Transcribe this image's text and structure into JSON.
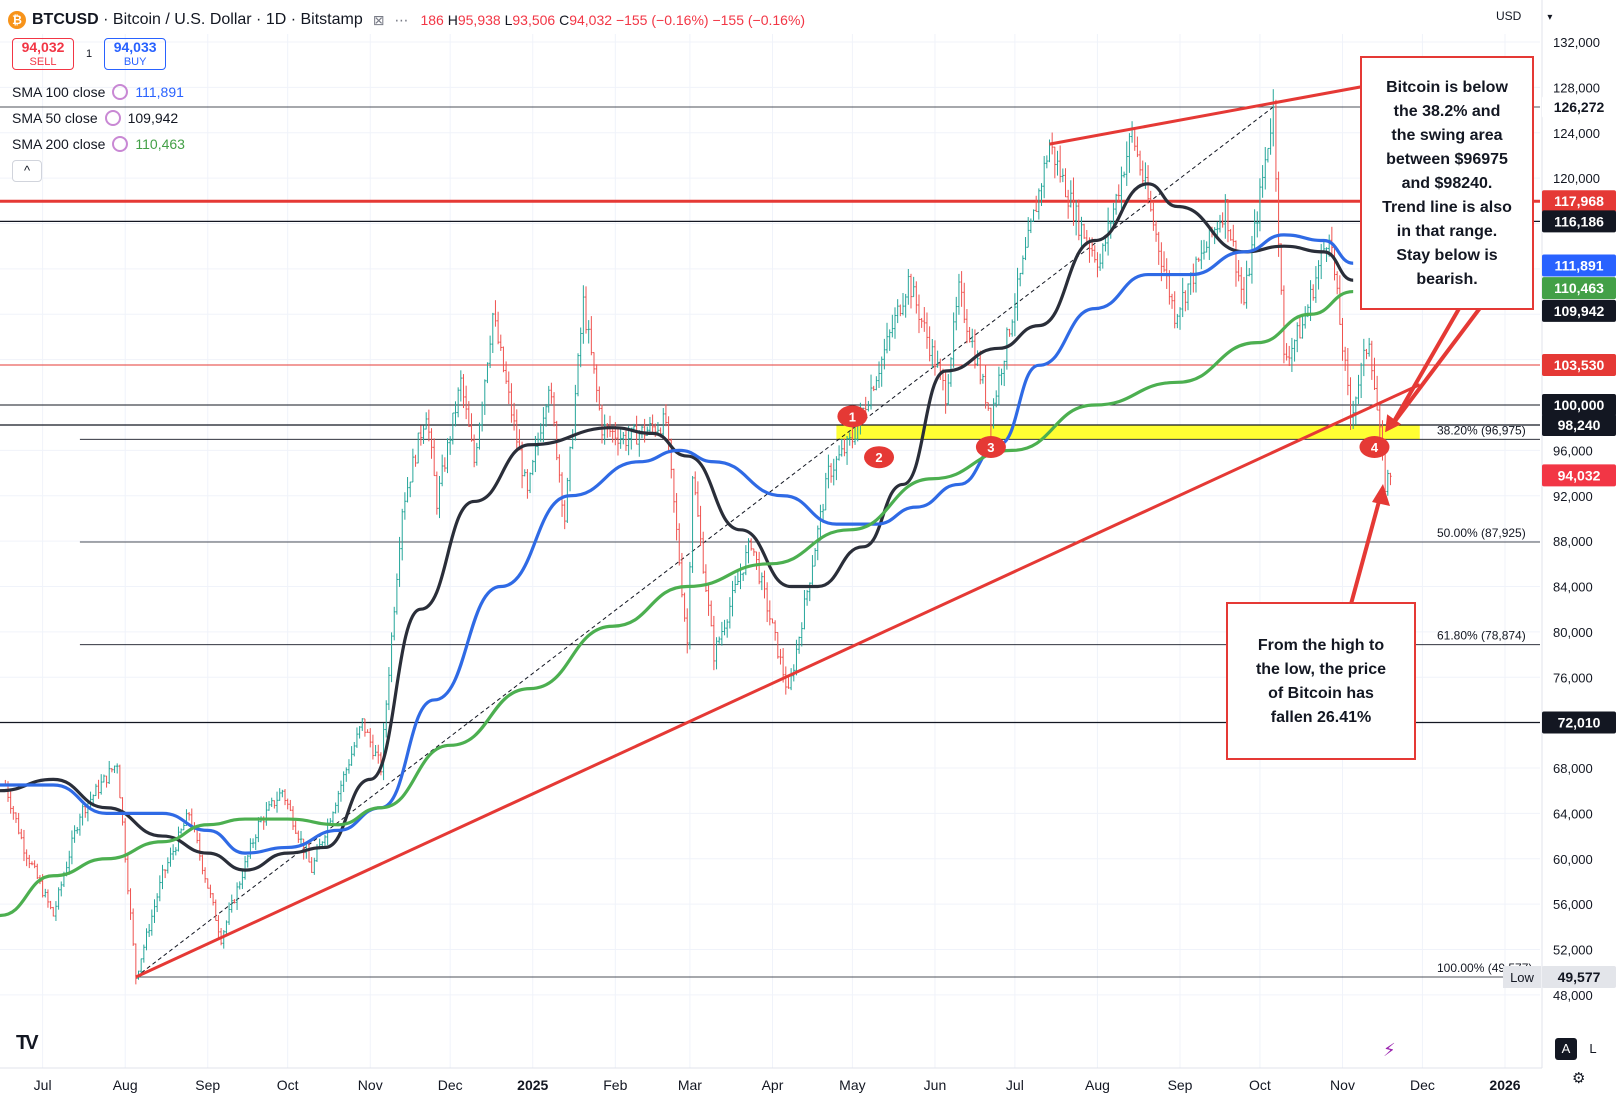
{
  "header": {
    "symbol": "BTCUSD",
    "title": "Bitcoin / U.S. Dollar",
    "interval": "1D",
    "exchange": "Bitstamp",
    "ohlc_open": "186",
    "ohlc_high": "95,938",
    "ohlc_low": "93,506",
    "ohlc_close": "94,032",
    "change": "−155 (−0.16%)",
    "change2": "−155 (−0.16%)",
    "label_h": "H",
    "label_l": "L",
    "label_c": "C"
  },
  "trade": {
    "sell_price": "94,032",
    "sell_label": "SELL",
    "spread": "1",
    "buy_price": "94,033",
    "buy_label": "BUY"
  },
  "indicators": [
    {
      "label": "SMA 100 close",
      "value": "111,891",
      "color": "#2962ff"
    },
    {
      "label": "SMA 50 close",
      "value": "109,942",
      "color": "#131722"
    },
    {
      "label": "SMA 200 close",
      "value": "110,463",
      "color": "#43a047"
    }
  ],
  "currency": "USD",
  "collapse_glyph": "^",
  "notes": {
    "note1": [
      "Bitcoin is below",
      "the 38.2% and",
      "the swing area",
      "between $96975",
      "and $98240.",
      "Trend line is also",
      "in that range.",
      "Stay below is",
      "bearish."
    ],
    "note2": [
      "From the high to",
      "the low, the price",
      "of Bitcoin has",
      "fallen 26.41%"
    ]
  },
  "bottom": {
    "auto_label": "A",
    "log_label": "L"
  },
  "colors": {
    "up": "#26a69a",
    "down": "#ef5350",
    "sma50": "#2a2e39",
    "sma100": "#2f6ae5",
    "sma200": "#4caf50",
    "trend": "#e53935",
    "highlight": "#ffff33"
  },
  "chart_data": {
    "type": "line",
    "y_range": [
      46000,
      133000
    ],
    "y_ticks": [
      48000,
      52000,
      56000,
      60000,
      64000,
      68000,
      72000,
      76000,
      80000,
      84000,
      88000,
      92000,
      96000,
      100000,
      104000,
      108000,
      112000,
      116000,
      120000,
      124000,
      128000,
      132000
    ],
    "x_labels": [
      {
        "label": "Jul",
        "x": "2024-07-01"
      },
      {
        "label": "Aug",
        "x": "2024-08-01"
      },
      {
        "label": "Sep",
        "x": "2024-09-01"
      },
      {
        "label": "Oct",
        "x": "2024-10-01"
      },
      {
        "label": "Nov",
        "x": "2024-11-01"
      },
      {
        "label": "Dec",
        "x": "2024-12-01"
      },
      {
        "label": "2025",
        "x": "2025-01-01"
      },
      {
        "label": "Feb",
        "x": "2025-02-01"
      },
      {
        "label": "Mar",
        "x": "2025-03-01"
      },
      {
        "label": "Apr",
        "x": "2025-04-01"
      },
      {
        "label": "May",
        "x": "2025-05-01"
      },
      {
        "label": "Jun",
        "x": "2025-06-01"
      },
      {
        "label": "Jul",
        "x": "2025-07-01"
      },
      {
        "label": "Aug",
        "x": "2025-08-01"
      },
      {
        "label": "Sep",
        "x": "2025-09-01"
      },
      {
        "label": "Oct",
        "x": "2025-10-01"
      },
      {
        "label": "Nov",
        "x": "2025-11-01"
      },
      {
        "label": "Dec",
        "x": "2025-12-01"
      },
      {
        "label": "2026",
        "x": "2026-01-01"
      }
    ],
    "price_path": [
      [
        "2024-06-17",
        66500
      ],
      [
        "2024-06-24",
        61000
      ],
      [
        "2024-07-05",
        55000
      ],
      [
        "2024-07-15",
        64000
      ],
      [
        "2024-07-29",
        68500
      ],
      [
        "2024-08-05",
        49577
      ],
      [
        "2024-08-15",
        58500
      ],
      [
        "2024-08-25",
        64000
      ],
      [
        "2024-09-06",
        53000
      ],
      [
        "2024-09-20",
        63000
      ],
      [
        "2024-09-29",
        66000
      ],
      [
        "2024-10-10",
        59000
      ],
      [
        "2024-10-29",
        72000
      ],
      [
        "2024-11-05",
        68000
      ],
      [
        "2024-11-13",
        91000
      ],
      [
        "2024-11-22",
        99500
      ],
      [
        "2024-11-26",
        91500
      ],
      [
        "2024-12-05",
        102000
      ],
      [
        "2024-12-10",
        95000
      ],
      [
        "2024-12-17",
        108000
      ],
      [
        "2024-12-30",
        92000
      ],
      [
        "2025-01-07",
        102000
      ],
      [
        "2025-01-13",
        90000
      ],
      [
        "2025-01-20",
        109000
      ],
      [
        "2025-01-27",
        98000
      ],
      [
        "2025-02-05",
        97000
      ],
      [
        "2025-02-20",
        98500
      ],
      [
        "2025-02-28",
        79000
      ],
      [
        "2025-03-02",
        94000
      ],
      [
        "2025-03-10",
        78000
      ],
      [
        "2025-03-24",
        88000
      ],
      [
        "2025-04-07",
        74500
      ],
      [
        "2025-04-22",
        94000
      ],
      [
        "2025-05-01",
        97000
      ],
      [
        "2025-05-12",
        104000
      ],
      [
        "2025-05-22",
        111000
      ],
      [
        "2025-06-05",
        101000
      ],
      [
        "2025-06-10",
        110000
      ],
      [
        "2025-06-22",
        99000
      ],
      [
        "2025-06-30",
        108000
      ],
      [
        "2025-07-14",
        123000
      ],
      [
        "2025-07-25",
        116000
      ],
      [
        "2025-08-02",
        112500
      ],
      [
        "2025-08-14",
        124000
      ],
      [
        "2025-08-30",
        108000
      ],
      [
        "2025-09-18",
        117500
      ],
      [
        "2025-09-25",
        109000
      ],
      [
        "2025-10-06",
        126272
      ],
      [
        "2025-10-10",
        104000
      ],
      [
        "2025-10-17",
        107000
      ],
      [
        "2025-10-27",
        115500
      ],
      [
        "2025-11-04",
        99000
      ],
      [
        "2025-11-11",
        106000
      ],
      [
        "2025-11-17",
        93000
      ],
      [
        "2025-11-19",
        94032
      ]
    ],
    "series": [
      {
        "name": "SMA 50 close",
        "points": [
          [
            "2024-06-15",
            66000
          ],
          [
            "2024-07-05",
            67000
          ],
          [
            "2024-07-25",
            64500
          ],
          [
            "2024-08-15",
            62000
          ],
          [
            "2024-09-01",
            60500
          ],
          [
            "2024-09-15",
            59000
          ],
          [
            "2024-10-01",
            60500
          ],
          [
            "2024-10-15",
            61000
          ],
          [
            "2024-11-01",
            67000
          ],
          [
            "2024-11-20",
            82000
          ],
          [
            "2024-12-10",
            91500
          ],
          [
            "2024-12-31",
            96500
          ],
          [
            "2025-01-31",
            98000
          ],
          [
            "2025-02-15",
            97500
          ],
          [
            "2025-02-28",
            95500
          ],
          [
            "2025-03-20",
            89000
          ],
          [
            "2025-04-08",
            84000
          ],
          [
            "2025-04-18",
            84000
          ],
          [
            "2025-05-05",
            87500
          ],
          [
            "2025-05-20",
            93000
          ],
          [
            "2025-06-05",
            103000
          ],
          [
            "2025-06-25",
            105000
          ],
          [
            "2025-07-10",
            107000
          ],
          [
            "2025-07-31",
            114500
          ],
          [
            "2025-08-20",
            119500
          ],
          [
            "2025-08-31",
            117500
          ],
          [
            "2025-09-25",
            113500
          ],
          [
            "2025-10-10",
            114000
          ],
          [
            "2025-10-25",
            113500
          ],
          [
            "2025-11-05",
            111000
          ]
        ]
      },
      {
        "name": "SMA 100 close",
        "points": [
          [
            "2024-06-15",
            66500
          ],
          [
            "2024-07-05",
            66500
          ],
          [
            "2024-07-25",
            64000
          ],
          [
            "2024-08-15",
            64000
          ],
          [
            "2024-09-01",
            62500
          ],
          [
            "2024-09-15",
            60500
          ],
          [
            "2024-10-01",
            61000
          ],
          [
            "2024-10-20",
            62500
          ],
          [
            "2024-11-05",
            64500
          ],
          [
            "2024-11-25",
            74000
          ],
          [
            "2024-12-20",
            84000
          ],
          [
            "2025-01-15",
            92000
          ],
          [
            "2025-02-10",
            95000
          ],
          [
            "2025-02-25",
            96000
          ],
          [
            "2025-03-10",
            95000
          ],
          [
            "2025-04-05",
            92000
          ],
          [
            "2025-04-25",
            89500
          ],
          [
            "2025-05-10",
            89500
          ],
          [
            "2025-05-25",
            91000
          ],
          [
            "2025-06-10",
            93000
          ],
          [
            "2025-06-25",
            96500
          ],
          [
            "2025-07-10",
            103500
          ],
          [
            "2025-07-31",
            108500
          ],
          [
            "2025-08-20",
            111500
          ],
          [
            "2025-09-05",
            111500
          ],
          [
            "2025-09-25",
            113500
          ],
          [
            "2025-10-10",
            115000
          ],
          [
            "2025-10-25",
            114500
          ],
          [
            "2025-11-05",
            112500
          ]
        ]
      },
      {
        "name": "SMA 200 close",
        "points": [
          [
            "2024-06-15",
            55000
          ],
          [
            "2024-07-05",
            58500
          ],
          [
            "2024-07-25",
            60000
          ],
          [
            "2024-08-15",
            61500
          ],
          [
            "2024-09-01",
            63000
          ],
          [
            "2024-09-15",
            63500
          ],
          [
            "2024-10-01",
            63500
          ],
          [
            "2024-10-20",
            63000
          ],
          [
            "2024-11-05",
            64500
          ],
          [
            "2024-12-01",
            70000
          ],
          [
            "2024-12-31",
            75000
          ],
          [
            "2025-01-31",
            80500
          ],
          [
            "2025-02-28",
            84000
          ],
          [
            "2025-03-31",
            86000
          ],
          [
            "2025-04-30",
            89000
          ],
          [
            "2025-05-31",
            93500
          ],
          [
            "2025-06-30",
            96000
          ],
          [
            "2025-07-31",
            100000
          ],
          [
            "2025-08-31",
            102000
          ],
          [
            "2025-09-30",
            105500
          ],
          [
            "2025-10-20",
            108000
          ],
          [
            "2025-11-05",
            110000
          ]
        ]
      }
    ],
    "trend_lines": [
      {
        "name": "support",
        "points": [
          [
            "2024-08-05",
            49577
          ],
          [
            "2025-11-30",
            101800
          ]
        ]
      },
      {
        "name": "resistance",
        "points": [
          [
            "2025-07-14",
            123000
          ],
          [
            "2025-11-30",
            129000
          ]
        ]
      }
    ],
    "fib_guide": {
      "points": [
        [
          "2024-08-05",
          49577
        ],
        [
          "2025-10-06",
          126272
        ]
      ]
    },
    "horizontal_lines": [
      {
        "price": 117968,
        "color": "#e53935",
        "width": 3
      },
      {
        "price": 116186,
        "color": "#131722",
        "width": 1.2
      },
      {
        "price": 103530,
        "color": "#e53935",
        "width": 1
      },
      {
        "price": 100000,
        "color": "#131722",
        "width": 1
      },
      {
        "price": 98240,
        "color": "#131722",
        "width": 1.2
      },
      {
        "price": 96975,
        "color": "#131722",
        "width": 0.8
      },
      {
        "price": 87925,
        "color": "#131722",
        "width": 0.8
      },
      {
        "price": 78874,
        "color": "#131722",
        "width": 0.8
      },
      {
        "price": 72010,
        "color": "#131722",
        "width": 1.2
      },
      {
        "price": 49577,
        "color": "#131722",
        "width": 0.8
      },
      {
        "price": 126272,
        "color": "#131722",
        "width": 0.8
      }
    ],
    "highlight_zone": {
      "from": "2025-04-25",
      "to": "2025-11-30",
      "y0": 96975,
      "y1": 98240
    },
    "fib_levels": [
      {
        "label": "38.20% (96,975)",
        "price": 96975
      },
      {
        "label": "50.00% (87,925)",
        "price": 87925
      },
      {
        "label": "61.80% (78,874)",
        "price": 78874
      },
      {
        "label": "100.00% (49,577)",
        "price": 49577
      }
    ],
    "markers": [
      {
        "label": "1",
        "x": "2025-05-01",
        "y": 99000
      },
      {
        "label": "2",
        "x": "2025-05-11",
        "y": 95400
      },
      {
        "label": "3",
        "x": "2025-06-22",
        "y": 96300
      },
      {
        "label": "4",
        "x": "2025-11-13",
        "y": 96300
      }
    ],
    "price_labels": [
      {
        "text": "126,272",
        "price": 126272,
        "bg": "#ffffff",
        "fg": "#131722"
      },
      {
        "text": "117,968",
        "price": 117968,
        "bg": "#e53935",
        "fg": "#ffffff"
      },
      {
        "text": "116,186",
        "price": 116186,
        "bg": "#131722",
        "fg": "#ffffff"
      },
      {
        "text": "111,891",
        "price": 112300,
        "bg": "#2962ff",
        "fg": "#ffffff"
      },
      {
        "text": "110,463",
        "price": 110300,
        "bg": "#43a047",
        "fg": "#ffffff"
      },
      {
        "text": "109,942",
        "price": 108300,
        "bg": "#131722",
        "fg": "#ffffff"
      },
      {
        "text": "103,530",
        "price": 103530,
        "bg": "#e53935",
        "fg": "#ffffff"
      },
      {
        "text": "100,000",
        "price": 100000,
        "bg": "#131722",
        "fg": "#ffffff"
      },
      {
        "text": "98,240",
        "price": 98240,
        "bg": "#131722",
        "fg": "#ffffff"
      },
      {
        "text": "94,032",
        "price": 93800,
        "bg": "#f23645",
        "fg": "#ffffff"
      },
      {
        "text": "72,010",
        "price": 72010,
        "bg": "#131722",
        "fg": "#ffffff"
      },
      {
        "text": "49,577",
        "price": 49577,
        "bg": "#e3e5ea",
        "fg": "#131722"
      }
    ],
    "low_label": "Low"
  }
}
